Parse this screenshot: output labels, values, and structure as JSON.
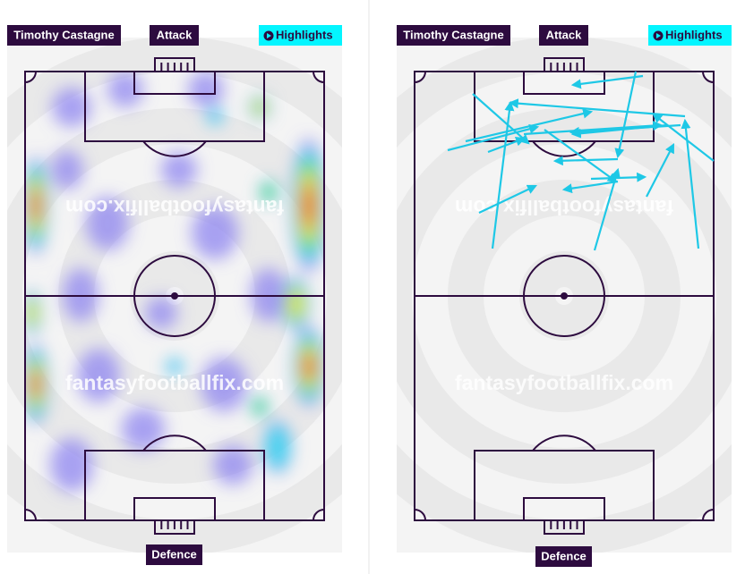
{
  "panels": [
    {
      "player": "Timothy Castagne",
      "attack": "Attack",
      "highlights": "Highlights",
      "defence": "Defence",
      "watermarks": [
        "fantasyfootballfix.com",
        "fantasyfootballfix.com"
      ]
    },
    {
      "player": "Timothy Castagne",
      "attack": "Attack",
      "highlights": "Highlights",
      "defence": "Defence",
      "watermarks": [
        "fantasyfootballfix.com",
        "fantasyfootballfix.com"
      ]
    }
  ]
}
